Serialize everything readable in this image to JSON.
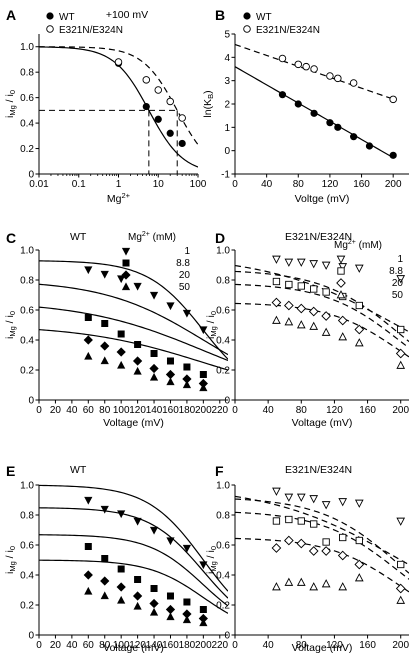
{
  "chart_data": [
    {
      "panel": "A",
      "type": "scatter",
      "title": "+100 mV",
      "xlabel": "Mg2+",
      "ylabel": "iMg / i0",
      "xscale": "log",
      "xlim": [
        0.01,
        100
      ],
      "ylim": [
        0,
        1.1
      ],
      "xticks": [
        "0.01",
        "0.1",
        "1",
        "10",
        "100"
      ],
      "yticks": [
        "0",
        "0.2",
        "0.4",
        "0.6",
        "0.8",
        "1.0"
      ],
      "legend": [
        "WT",
        "E321N/E324N"
      ],
      "series": [
        {
          "name": "WT",
          "marker": "filled-circle",
          "x": [
            1,
            5,
            10,
            20,
            40
          ],
          "y": [
            0.87,
            0.53,
            0.43,
            0.32,
            0.24
          ],
          "fit": {
            "K": 5.8,
            "style": "solid"
          }
        },
        {
          "name": "E321N/E324N",
          "marker": "open-circle",
          "x": [
            1,
            5,
            10,
            20,
            40
          ],
          "y": [
            0.88,
            0.74,
            0.66,
            0.57,
            0.44
          ],
          "fit": {
            "K": 30,
            "style": "dashed"
          }
        }
      ],
      "reference_lines": {
        "y": 0.5,
        "x": [
          5.8,
          30
        ]
      }
    },
    {
      "panel": "B",
      "type": "scatter",
      "xlabel": "Voltge (mV)",
      "ylabel": "ln(KB)",
      "xlim": [
        0,
        220
      ],
      "ylim": [
        -1,
        5
      ],
      "xticks": [
        "0",
        "40",
        "80",
        "120",
        "160",
        "200"
      ],
      "yticks": [
        "-1",
        "0",
        "1",
        "2",
        "3",
        "4",
        "5"
      ],
      "legend": [
        "WT",
        "E321N/E324N"
      ],
      "series": [
        {
          "name": "WT",
          "marker": "filled-circle",
          "x": [
            60,
            80,
            100,
            120,
            130,
            150,
            170,
            200
          ],
          "y": [
            2.4,
            2.0,
            1.6,
            1.2,
            1.0,
            0.6,
            0.2,
            -0.2
          ],
          "fit": {
            "intercept": 3.6,
            "slope": -0.0195,
            "style": "solid"
          }
        },
        {
          "name": "E321N/E324N",
          "marker": "open-circle",
          "x": [
            60,
            80,
            90,
            100,
            120,
            130,
            150,
            200
          ],
          "y": [
            3.95,
            3.7,
            3.6,
            3.5,
            3.2,
            3.1,
            2.9,
            2.2
          ],
          "fit": {
            "intercept": 4.55,
            "slope": -0.0117,
            "style": "dashed"
          }
        }
      ]
    },
    {
      "panel": "C",
      "type": "scatter",
      "title": "WT",
      "xlabel": "Voltage (mV)",
      "ylabel": "iMg / i0",
      "xlim": [
        0,
        230
      ],
      "ylim": [
        0,
        1.0
      ],
      "xticks": [
        "0",
        "20",
        "40",
        "60",
        "80",
        "100",
        "120",
        "140",
        "160",
        "180",
        "200",
        "220"
      ],
      "yticks": [
        "0",
        "0.2",
        "0.4",
        "0.6",
        "0.8",
        "1.0"
      ],
      "legend_title": "Mg2+ (mM)",
      "legend": [
        "1",
        "8.8",
        "20",
        "50"
      ],
      "x": [
        60,
        80,
        100,
        120,
        140,
        160,
        180,
        200
      ],
      "series": [
        {
          "name": "1",
          "marker": "filled-triangle-down",
          "y": [
            0.87,
            0.84,
            0.81,
            0.76,
            0.7,
            0.63,
            0.58,
            0.47
          ]
        },
        {
          "name": "8.8",
          "marker": "filled-square",
          "y": [
            0.55,
            0.51,
            0.44,
            0.37,
            0.31,
            0.26,
            0.22,
            0.17
          ]
        },
        {
          "name": "20",
          "marker": "filled-diamond",
          "y": [
            0.4,
            0.36,
            0.32,
            0.26,
            0.21,
            0.17,
            0.14,
            0.11
          ]
        },
        {
          "name": "50",
          "marker": "filled-triangle-up",
          "y": [
            0.29,
            0.26,
            0.23,
            0.19,
            0.15,
            0.12,
            0.1,
            0.08
          ]
        }
      ],
      "fits": [
        [
          0.93,
          0.0295
        ],
        [
          0.8,
          0.0165
        ],
        [
          0.66,
          0.0136
        ],
        [
          0.5,
          0.0136
        ]
      ]
    },
    {
      "panel": "D",
      "type": "scatter",
      "title": "E321N/E324N",
      "xlabel": "Voltage (mV)",
      "ylabel": "iMg / i0",
      "xlim": [
        0,
        210
      ],
      "ylim": [
        0,
        1.0
      ],
      "xticks": [
        "0",
        "40",
        "80",
        "120",
        "160",
        "200"
      ],
      "yticks": [
        "0",
        "0.2",
        "0.4",
        "0.6",
        "0.8",
        "1.0"
      ],
      "legend_title": "Mg2+ (mM)",
      "legend": [
        "1",
        "8.8",
        "20",
        "50"
      ],
      "x": [
        50,
        65,
        80,
        95,
        110,
        130,
        150,
        200
      ],
      "series": [
        {
          "name": "1",
          "marker": "open-triangle-down",
          "y": [
            0.94,
            0.92,
            0.92,
            0.91,
            0.9,
            0.89,
            0.88,
            0.81
          ]
        },
        {
          "name": "8.8",
          "marker": "open-square",
          "y": [
            0.79,
            0.77,
            0.76,
            0.74,
            0.72,
            0.69,
            0.63,
            0.47
          ]
        },
        {
          "name": "20",
          "marker": "open-diamond",
          "y": [
            0.65,
            0.63,
            0.61,
            0.59,
            0.56,
            0.53,
            0.47,
            0.31
          ]
        },
        {
          "name": "50",
          "marker": "open-triangle-up",
          "y": [
            0.53,
            0.52,
            0.5,
            0.49,
            0.45,
            0.42,
            0.38,
            0.23
          ]
        }
      ],
      "fits": [
        [
          0.97,
          0.0125
        ],
        [
          0.87,
          0.021
        ],
        [
          0.78,
          0.022
        ],
        [
          0.65,
          0.0232
        ]
      ]
    },
    {
      "panel": "E",
      "type": "scatter",
      "title": "WT",
      "xlabel": "Voltage (mV)",
      "ylabel": "iMg / i0",
      "xlim": [
        0,
        230
      ],
      "ylim": [
        0,
        1.0
      ],
      "xticks": [
        "0",
        "20",
        "40",
        "60",
        "80",
        "100",
        "120",
        "140",
        "160",
        "180",
        "200",
        "220"
      ],
      "yticks": [
        "0",
        "0.2",
        "0.4",
        "0.6",
        "0.8",
        "1.0"
      ],
      "x": [
        60,
        80,
        100,
        120,
        140,
        160,
        180,
        200
      ],
      "series": [
        {
          "name": "1",
          "marker": "filled-triangle-down",
          "y": [
            0.9,
            0.84,
            0.81,
            0.76,
            0.7,
            0.63,
            0.58,
            0.47
          ]
        },
        {
          "name": "8.8",
          "marker": "filled-square",
          "y": [
            0.59,
            0.51,
            0.44,
            0.37,
            0.31,
            0.26,
            0.22,
            0.17
          ]
        },
        {
          "name": "20",
          "marker": "filled-diamond",
          "y": [
            0.4,
            0.36,
            0.32,
            0.26,
            0.21,
            0.17,
            0.14,
            0.11
          ]
        },
        {
          "name": "50",
          "marker": "filled-triangle-up",
          "y": [
            0.29,
            0.26,
            0.23,
            0.19,
            0.15,
            0.12,
            0.1,
            0.08
          ]
        }
      ],
      "fits": [
        [
          1.0,
          0.0295
        ],
        [
          0.85,
          0.03
        ],
        [
          0.67,
          0.03
        ],
        [
          0.5,
          0.03
        ]
      ]
    },
    {
      "panel": "F",
      "type": "scatter",
      "title": "E321N/E324N",
      "xlabel": "Voltage (mV)",
      "ylabel": "iMg / i0",
      "xlim": [
        0,
        210
      ],
      "ylim": [
        0,
        1.0
      ],
      "xticks": [
        "0",
        "40",
        "80",
        "120",
        "160",
        "200"
      ],
      "yticks": [
        "0",
        "0.2",
        "0.4",
        "0.6",
        "0.8",
        "1.0"
      ],
      "x": [
        50,
        65,
        80,
        95,
        110,
        130,
        150,
        200
      ],
      "series": [
        {
          "name": "1",
          "marker": "open-triangle-down",
          "y": [
            0.96,
            0.92,
            0.92,
            0.91,
            0.87,
            0.89,
            0.88,
            0.76
          ]
        },
        {
          "name": "8.8",
          "marker": "open-square",
          "y": [
            0.76,
            0.77,
            0.76,
            0.74,
            0.62,
            0.65,
            0.63,
            0.47
          ]
        },
        {
          "name": "20",
          "marker": "open-diamond",
          "y": [
            0.58,
            0.63,
            0.61,
            0.56,
            0.56,
            0.53,
            0.47,
            0.31
          ]
        },
        {
          "name": "50",
          "marker": "open-triangle-up",
          "y": [
            0.32,
            0.35,
            0.35,
            0.32,
            0.34,
            0.32,
            0.38,
            0.23
          ]
        }
      ],
      "fits": [
        [
          1.0,
          0.0125
        ],
        [
          0.92,
          0.021
        ],
        [
          0.83,
          0.021
        ],
        [
          0.65,
          0.023
        ]
      ]
    }
  ]
}
